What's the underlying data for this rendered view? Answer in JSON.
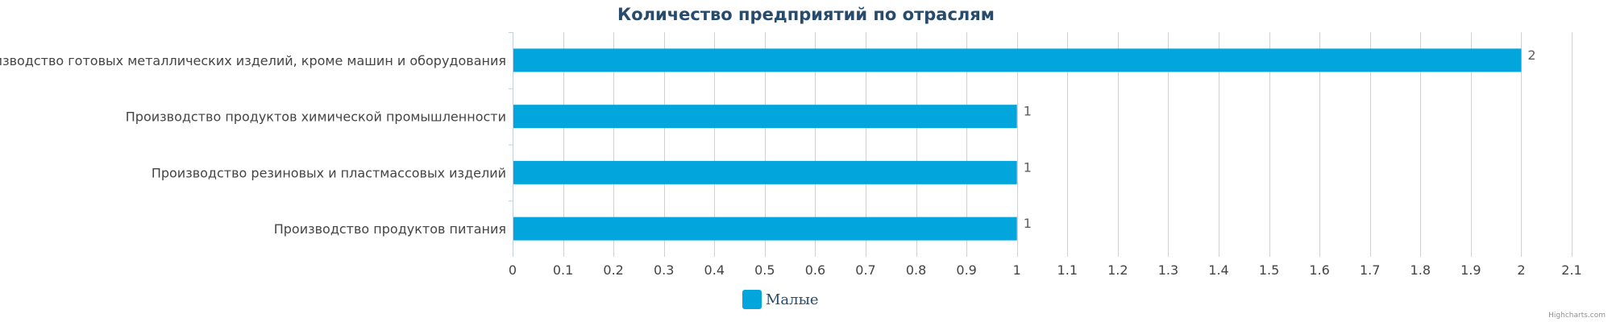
{
  "chart_data": {
    "type": "bar",
    "orientation": "horizontal",
    "title": "Количество предприятий по отраслям",
    "categories": [
      "Производство готовых металлических изделий, кроме машин и оборудования",
      "Производство продуктов химической промышленности",
      "Производство резиновых и пластмассовых изделий",
      "Производство продуктов питания"
    ],
    "series": [
      {
        "name": "Малые",
        "values": [
          2,
          1,
          1,
          1
        ],
        "color": "#03a5dd"
      }
    ],
    "xlim": [
      0,
      2.1
    ],
    "x_ticks": [
      "0",
      "0.1",
      "0.2",
      "0.3",
      "0.4",
      "0.5",
      "0.6",
      "0.7",
      "0.8",
      "0.9",
      "1",
      "1.1",
      "1.2",
      "1.3",
      "1.4",
      "1.5",
      "1.6",
      "1.7",
      "1.8",
      "1.9",
      "2",
      "2.1"
    ],
    "grid": true,
    "legend_position": "bottom-center",
    "credits": "Highcharts.com"
  }
}
